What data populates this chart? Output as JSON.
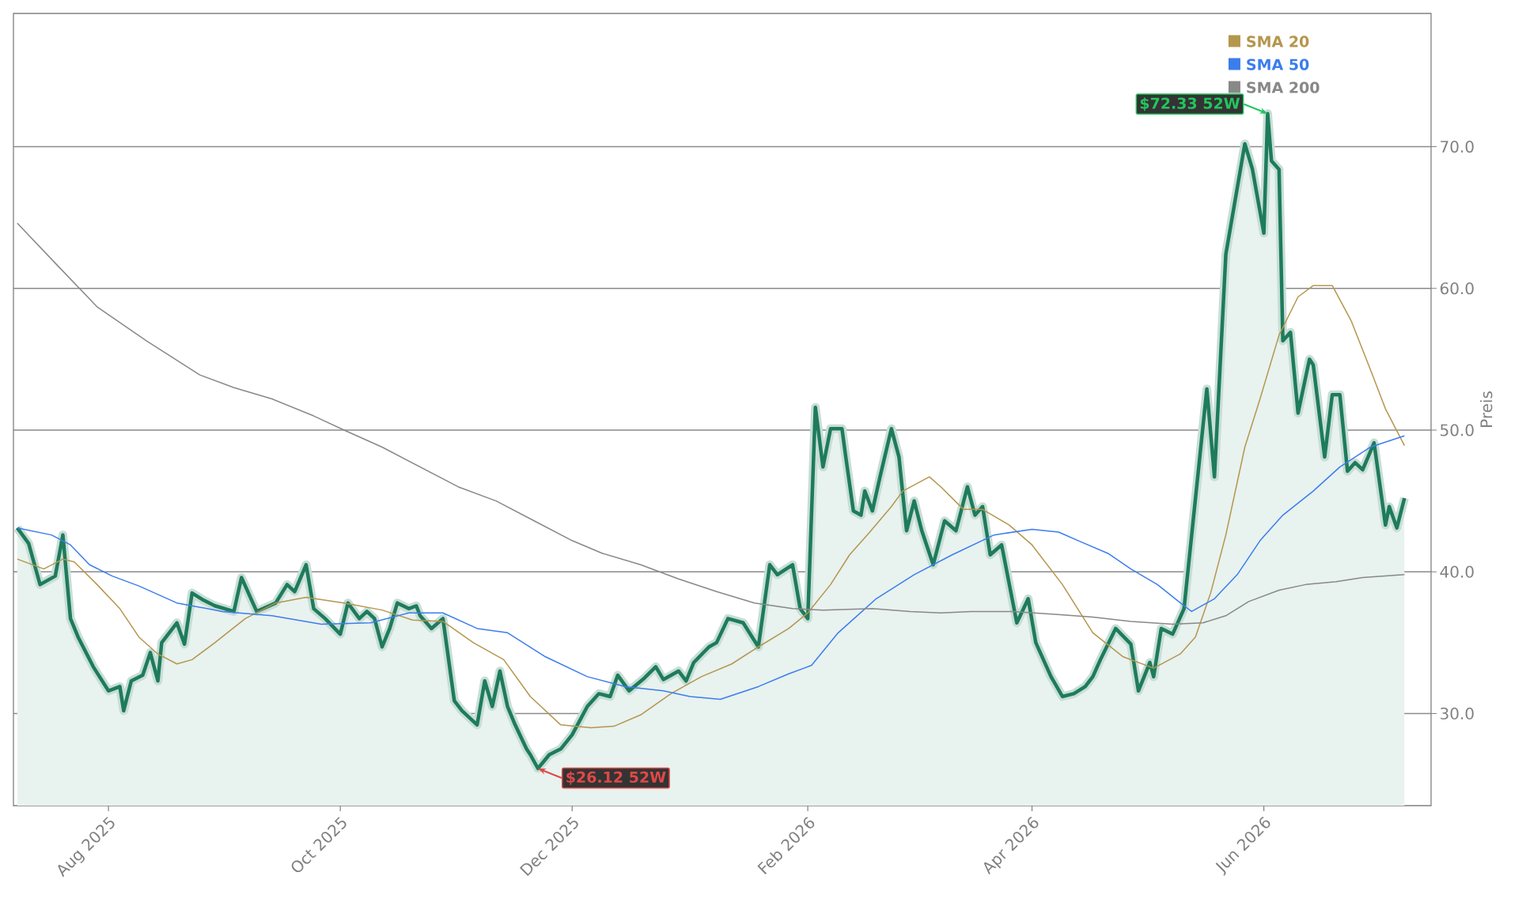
{
  "chart_data": {
    "type": "line",
    "ylabel": "Preis",
    "xlim": [
      "2025-07-07",
      "2026-07-15"
    ],
    "ylim": [
      23.5,
      79.4
    ],
    "xticks": [
      {
        "value": "2025-08-01",
        "label": "Aug 2025"
      },
      {
        "value": "2025-10-01",
        "label": "Oct 2025"
      },
      {
        "value": "2025-12-01",
        "label": "Dec 2025"
      },
      {
        "value": "2026-02-01",
        "label": "Feb 2026"
      },
      {
        "value": "2026-04-01",
        "label": "Apr 2026"
      },
      {
        "value": "2026-06-01",
        "label": "Jun 2026"
      }
    ],
    "yticks": [
      {
        "value": 30,
        "label": "30.0"
      },
      {
        "value": 40,
        "label": "40.0"
      },
      {
        "value": 50,
        "label": "50.0"
      },
      {
        "value": 60,
        "label": "60.0"
      },
      {
        "value": 70,
        "label": "70.0"
      }
    ],
    "grid": "y",
    "legend": "top right",
    "annotations": [
      {
        "text": "$72.33 52W",
        "x": "2026-06-02",
        "y": 72.33
      },
      {
        "text": "$26.12 52W",
        "x": "2025-11-22",
        "y": 26.12
      }
    ],
    "series": [
      {
        "type": "area",
        "color": "#1e7b5c",
        "x": [
          "2025-07-08",
          "2025-07-11",
          "2025-07-14",
          "2025-07-18",
          "2025-07-20",
          "2025-07-22",
          "2025-07-24",
          "2025-07-28",
          "2025-08-01",
          "2025-08-04",
          "2025-08-05",
          "2025-08-07",
          "2025-08-10",
          "2025-08-12",
          "2025-08-14",
          "2025-08-15",
          "2025-08-19",
          "2025-08-21",
          "2025-08-23",
          "2025-08-26",
          "2025-08-29",
          "2025-09-03",
          "2025-09-05",
          "2025-09-09",
          "2025-09-14",
          "2025-09-17",
          "2025-09-19",
          "2025-09-22",
          "2025-09-24",
          "2025-09-27",
          "2025-10-01",
          "2025-10-03",
          "2025-10-06",
          "2025-10-08",
          "2025-10-10",
          "2025-10-12",
          "2025-10-14",
          "2025-10-16",
          "2025-10-19",
          "2025-10-21",
          "2025-10-22",
          "2025-10-25",
          "2025-10-28",
          "2025-10-31",
          "2025-11-02",
          "2025-11-06",
          "2025-11-08",
          "2025-11-10",
          "2025-11-12",
          "2025-11-14",
          "2025-11-16",
          "2025-11-19",
          "2025-11-20",
          "2025-11-22",
          "2025-11-25",
          "2025-11-28",
          "2025-12-01",
          "2025-12-05",
          "2025-12-08",
          "2025-12-11",
          "2025-12-13",
          "2025-12-16",
          "2025-12-20",
          "2025-12-23",
          "2025-12-25",
          "2025-12-29",
          "2025-12-31",
          "2026-01-02",
          "2026-01-06",
          "2026-01-08",
          "2026-01-11",
          "2026-01-15",
          "2026-01-19",
          "2026-01-22",
          "2026-01-24",
          "2026-01-28",
          "2026-01-30",
          "2026-02-01",
          "2026-02-03",
          "2026-02-05",
          "2026-02-07",
          "2026-02-10",
          "2026-02-11",
          "2026-02-13",
          "2026-02-15",
          "2026-02-16",
          "2026-02-18",
          "2026-02-20",
          "2026-02-23",
          "2026-02-25",
          "2026-02-27",
          "2026-03-01",
          "2026-03-03",
          "2026-03-06",
          "2026-03-09",
          "2026-03-12",
          "2026-03-15",
          "2026-03-17",
          "2026-03-19",
          "2026-03-21",
          "2026-03-24",
          "2026-03-28",
          "2026-03-31",
          "2026-04-02",
          "2026-04-06",
          "2026-04-09",
          "2026-04-12",
          "2026-04-15",
          "2026-04-17",
          "2026-04-19",
          "2026-04-23",
          "2026-04-27",
          "2026-04-29",
          "2026-05-02",
          "2026-05-03",
          "2026-05-05",
          "2026-05-08",
          "2026-05-11",
          "2026-05-17",
          "2026-05-19",
          "2026-05-22",
          "2026-05-27",
          "2026-05-29",
          "2026-06-01",
          "2026-06-02",
          "2026-06-03",
          "2026-06-05",
          "2026-06-06",
          "2026-06-08",
          "2026-06-10",
          "2026-06-13",
          "2026-06-14",
          "2026-06-17",
          "2026-06-19",
          "2026-06-21",
          "2026-06-23",
          "2026-06-25",
          "2026-06-27",
          "2026-06-30",
          "2026-07-03",
          "2026-07-04",
          "2026-07-06",
          "2026-07-08"
        ],
        "values": [
          43.1,
          42.0,
          39.1,
          39.7,
          42.6,
          36.7,
          35.4,
          33.3,
          31.6,
          31.9,
          30.2,
          32.3,
          32.7,
          34.3,
          32.3,
          35.0,
          36.4,
          34.9,
          38.5,
          38.0,
          37.6,
          37.2,
          39.6,
          37.2,
          37.8,
          39.1,
          38.6,
          40.5,
          37.4,
          36.7,
          35.6,
          37.8,
          36.7,
          37.2,
          36.7,
          34.7,
          36.0,
          37.8,
          37.4,
          37.6,
          36.9,
          36.0,
          36.7,
          30.9,
          30.2,
          29.2,
          32.3,
          30.5,
          33.0,
          30.5,
          29.2,
          27.5,
          27.1,
          26.12,
          27.1,
          27.5,
          28.5,
          30.5,
          31.4,
          31.2,
          32.7,
          31.6,
          32.5,
          33.3,
          32.4,
          33.0,
          32.3,
          33.6,
          34.7,
          35.0,
          36.7,
          36.4,
          34.7,
          40.5,
          39.8,
          40.5,
          37.4,
          36.7,
          51.6,
          47.4,
          50.1,
          50.1,
          48.1,
          44.3,
          44.0,
          45.7,
          44.3,
          46.7,
          50.1,
          48.1,
          42.9,
          45.0,
          42.9,
          40.5,
          43.6,
          42.9,
          46.0,
          44.0,
          44.6,
          41.2,
          41.9,
          36.4,
          38.1,
          35.0,
          32.6,
          31.2,
          31.4,
          31.9,
          32.6,
          33.8,
          36.0,
          34.9,
          31.6,
          33.6,
          32.6,
          36.0,
          35.6,
          37.4,
          52.9,
          46.7,
          62.4,
          70.2,
          68.4,
          63.9,
          72.33,
          69.0,
          68.4,
          56.3,
          56.9,
          51.2,
          55.0,
          54.6,
          48.1,
          52.5,
          52.5,
          47.1,
          47.7,
          47.2,
          49.1,
          43.3,
          44.6,
          43.1,
          45.2
        ]
      },
      {
        "name": "SMA 20",
        "color": "#b5964d",
        "x": [
          "2025-07-08",
          "2025-07-15",
          "2025-07-20",
          "2025-07-23",
          "2025-07-29",
          "2025-08-04",
          "2025-08-09",
          "2025-08-14",
          "2025-08-19",
          "2025-08-23",
          "2025-08-29",
          "2025-09-06",
          "2025-09-14",
          "2025-09-22",
          "2025-10-02",
          "2025-10-12",
          "2025-10-20",
          "2025-10-28",
          "2025-11-05",
          "2025-11-13",
          "2025-11-20",
          "2025-11-28",
          "2025-12-06",
          "2025-12-12",
          "2025-12-19",
          "2025-12-27",
          "2026-01-04",
          "2026-01-12",
          "2026-01-19",
          "2026-01-27",
          "2026-02-01",
          "2026-02-07",
          "2026-02-12",
          "2026-02-17",
          "2026-02-23",
          "2026-02-26",
          "2026-03-05",
          "2026-03-08",
          "2026-03-14",
          "2026-03-19",
          "2026-03-26",
          "2026-04-01",
          "2026-04-09",
          "2026-04-17",
          "2026-04-25",
          "2026-05-03",
          "2026-05-10",
          "2026-05-14",
          "2026-05-18",
          "2026-05-22",
          "2026-05-27",
          "2026-05-31",
          "2026-06-05",
          "2026-06-10",
          "2026-06-14",
          "2026-06-19",
          "2026-06-24",
          "2026-06-29",
          "2026-07-03",
          "2026-07-08"
        ],
        "values": [
          40.9,
          40.2,
          40.9,
          40.7,
          39.1,
          37.4,
          35.4,
          34.2,
          33.5,
          33.8,
          35.0,
          36.7,
          37.8,
          38.2,
          37.8,
          37.3,
          36.6,
          36.5,
          35.0,
          33.8,
          31.2,
          29.2,
          29.0,
          29.1,
          29.9,
          31.4,
          32.6,
          33.5,
          34.7,
          36.0,
          37.1,
          39.1,
          41.2,
          42.7,
          44.6,
          45.7,
          46.7,
          46.0,
          44.4,
          44.4,
          43.3,
          41.9,
          39.1,
          35.7,
          34.0,
          33.2,
          34.2,
          35.4,
          38.5,
          42.6,
          48.8,
          52.2,
          56.7,
          59.4,
          60.2,
          60.2,
          57.7,
          54.3,
          51.5,
          48.9
        ]
      },
      {
        "name": "SMA 50",
        "color": "#3b7ded",
        "x": [
          "2025-07-08",
          "2025-07-17",
          "2025-07-22",
          "2025-07-27",
          "2025-08-02",
          "2025-08-09",
          "2025-08-19",
          "2025-08-31",
          "2025-09-13",
          "2025-09-26",
          "2025-10-09",
          "2025-10-19",
          "2025-10-28",
          "2025-11-06",
          "2025-11-14",
          "2025-11-24",
          "2025-12-05",
          "2025-12-15",
          "2025-12-25",
          "2026-01-01",
          "2026-01-09",
          "2026-01-19",
          "2026-01-27",
          "2026-02-02",
          "2026-02-09",
          "2026-02-19",
          "2026-03-01",
          "2026-03-11",
          "2026-03-22",
          "2026-04-01",
          "2026-04-08",
          "2026-04-14",
          "2026-04-21",
          "2026-04-27",
          "2026-05-04",
          "2026-05-11",
          "2026-05-13",
          "2026-05-19",
          "2026-05-25",
          "2026-05-31",
          "2026-06-06",
          "2026-06-14",
          "2026-06-21",
          "2026-06-29",
          "2026-07-08"
        ],
        "values": [
          43.1,
          42.6,
          41.9,
          40.5,
          39.7,
          39.0,
          37.8,
          37.2,
          36.9,
          36.3,
          36.4,
          37.1,
          37.1,
          36.0,
          35.7,
          34.0,
          32.6,
          31.9,
          31.6,
          31.2,
          31.0,
          31.9,
          32.8,
          33.4,
          35.7,
          38.1,
          39.8,
          41.2,
          42.6,
          43.0,
          42.8,
          42.1,
          41.3,
          40.2,
          39.1,
          37.6,
          37.2,
          38.1,
          39.8,
          42.2,
          44.0,
          45.7,
          47.4,
          48.8,
          49.6
        ]
      },
      {
        "name": "SMA 200",
        "color": "#888888",
        "x": [
          "2025-07-08",
          "2025-07-19",
          "2025-07-29",
          "2025-08-11",
          "2025-08-25",
          "2025-09-03",
          "2025-09-13",
          "2025-09-24",
          "2025-10-02",
          "2025-10-12",
          "2025-10-22",
          "2025-11-01",
          "2025-11-11",
          "2025-11-21",
          "2025-12-01",
          "2025-12-09",
          "2025-12-19",
          "2025-12-29",
          "2026-01-08",
          "2026-01-18",
          "2026-01-28",
          "2026-02-05",
          "2026-02-18",
          "2026-02-28",
          "2026-03-08",
          "2026-03-16",
          "2026-03-27",
          "2026-04-07",
          "2026-04-17",
          "2026-04-27",
          "2026-05-08",
          "2026-05-16",
          "2026-05-22",
          "2026-05-28",
          "2026-06-05",
          "2026-06-12",
          "2026-06-20",
          "2026-06-27",
          "2026-07-08"
        ],
        "values": [
          64.6,
          61.5,
          58.7,
          56.3,
          53.9,
          53.0,
          52.2,
          51.0,
          50.0,
          48.8,
          47.4,
          46.0,
          45.0,
          43.6,
          42.2,
          41.3,
          40.5,
          39.5,
          38.6,
          37.8,
          37.4,
          37.3,
          37.4,
          37.2,
          37.1,
          37.2,
          37.2,
          37.0,
          36.8,
          36.5,
          36.3,
          36.4,
          36.9,
          37.9,
          38.7,
          39.1,
          39.3,
          39.6,
          39.8
        ]
      }
    ]
  }
}
